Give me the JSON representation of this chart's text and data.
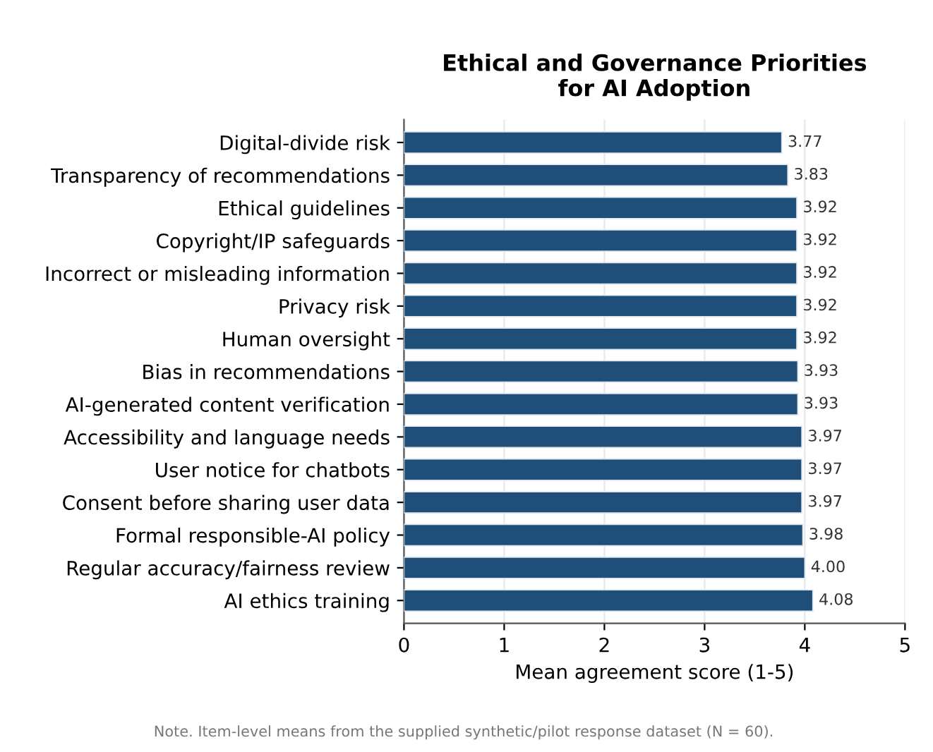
{
  "chart_data": {
    "type": "bar",
    "orientation": "horizontal",
    "title": "Ethical and Governance Priorities\nfor AI Adoption",
    "xlabel": "Mean agreement score (1-5)",
    "categories": [
      "Digital-divide risk",
      "Transparency of recommendations",
      "Ethical guidelines",
      "Copyright/IP safeguards",
      "Incorrect or misleading information",
      "Privacy risk",
      "Human oversight",
      "Bias in recommendations",
      "AI-generated content verification",
      "Accessibility and language needs",
      "User notice for chatbots",
      "Consent before sharing user data",
      "Formal responsible-AI policy",
      "Regular accuracy/fairness review",
      "AI ethics training"
    ],
    "values": [
      3.77,
      3.83,
      3.92,
      3.92,
      3.92,
      3.92,
      3.92,
      3.93,
      3.93,
      3.97,
      3.97,
      3.97,
      3.98,
      4.0,
      4.08
    ],
    "value_labels": [
      "3.77",
      "3.83",
      "3.92",
      "3.92",
      "3.92",
      "3.92",
      "3.92",
      "3.93",
      "3.93",
      "3.97",
      "3.97",
      "3.97",
      "3.98",
      "4.00",
      "4.08"
    ],
    "color": "#1f4e79",
    "xlim": [
      0,
      5
    ],
    "xticks": [
      0,
      1,
      2,
      3,
      4,
      5
    ],
    "grid": "x",
    "annotations": [
      "Note. Item-level means from the supplied synthetic/pilot response dataset (N = 60)."
    ]
  }
}
